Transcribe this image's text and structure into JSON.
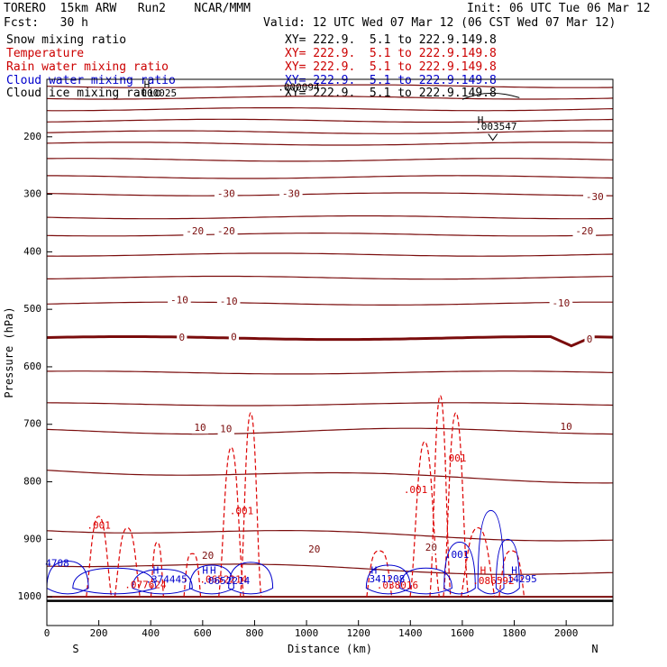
{
  "header": {
    "model": "TORERO  15km ARW   Run2    NCAR/MMM",
    "init": "Init: 06 UTC Tue 06 Mar 12",
    "fcst": "Fcst:   30 h",
    "valid": "Valid: 12 UTC Wed 07 Mar 12 (06 CST Wed 07 Mar 12)"
  },
  "legend": [
    {
      "label": "Snow mixing ratio",
      "color": "#000000",
      "xy": "XY= 222.9.  5.1 to 222.9.149.8"
    },
    {
      "label": "Temperature",
      "color": "#cc0000",
      "xy": "XY= 222.9.  5.1 to 222.9.149.8"
    },
    {
      "label": "Rain water mixing ratio",
      "color": "#cc0000",
      "xy": "XY= 222.9.  5.1 to 222.9.149.8"
    },
    {
      "label": "Cloud water mixing ratio",
      "color": "#0000cc",
      "xy": "XY= 222.9.  5.1 to 222.9.149.8"
    },
    {
      "label": "Cloud ice mixing ratio",
      "color": "#000000",
      "xy": "XY= 222.9.  5.1 to 222.9.149.8"
    }
  ],
  "colors": {
    "temperature": "#7a0c0c",
    "rain": "#dd0000",
    "cloud_water": "#0000cc",
    "ice": "#000000"
  },
  "chart_data": {
    "type": "line",
    "xlabel": "Distance (km)",
    "ylabel": "Pressure (hPa)",
    "xlim": [
      0,
      2180
    ],
    "ylim": [
      1050,
      100
    ],
    "xticks": [
      0,
      200,
      400,
      600,
      800,
      1000,
      1200,
      1400,
      1600,
      1800,
      2000
    ],
    "yticks": [
      200,
      300,
      400,
      500,
      600,
      700,
      800,
      900,
      1000
    ],
    "x_end_labels": {
      "left": "S",
      "right": "N"
    },
    "temperature_contours": {
      "levels_hpa": [
        112,
        132,
        152,
        172,
        192,
        212,
        240,
        270,
        300,
        340,
        370,
        405,
        445,
        490,
        550,
        610,
        665,
        712,
        788,
        890,
        950
      ],
      "zero_level_hpa": 550,
      "labels": [
        {
          "text": "-30",
          "x": 690,
          "p": 300
        },
        {
          "text": "-30",
          "x": 940,
          "p": 300
        },
        {
          "text": "-30",
          "x": 2110,
          "p": 305
        },
        {
          "text": "-20",
          "x": 570,
          "p": 365
        },
        {
          "text": "-20",
          "x": 690,
          "p": 365
        },
        {
          "text": "-20",
          "x": 2070,
          "p": 365
        },
        {
          "text": "-10",
          "x": 510,
          "p": 485
        },
        {
          "text": "-10",
          "x": 700,
          "p": 487
        },
        {
          "text": "-10",
          "x": 1980,
          "p": 490
        },
        {
          "text": "0",
          "x": 520,
          "p": 550
        },
        {
          "text": "0",
          "x": 720,
          "p": 549
        },
        {
          "text": "0",
          "x": 2090,
          "p": 553
        },
        {
          "text": "10",
          "x": 590,
          "p": 707
        },
        {
          "text": "10",
          "x": 690,
          "p": 709
        },
        {
          "text": "10",
          "x": 2000,
          "p": 705
        },
        {
          "text": "20",
          "x": 620,
          "p": 929
        },
        {
          "text": "20",
          "x": 1030,
          "p": 918
        },
        {
          "text": "20",
          "x": 1480,
          "p": 915
        }
      ]
    },
    "rain_labels": [
      {
        "text": ".001",
        "x": 200,
        "p": 877
      },
      {
        "text": ".001",
        "x": 750,
        "p": 852
      },
      {
        "text": ".001",
        "x": 1420,
        "p": 815
      },
      {
        "text": ".001",
        "x": 1570,
        "p": 760
      },
      {
        "text": ".077624",
        "x": 380,
        "p": 980
      },
      {
        "text": ".0652214",
        "x": 680,
        "p": 971
      },
      {
        "text": ".038016",
        "x": 1350,
        "p": 981
      },
      {
        "text": ".086592",
        "x": 1720,
        "p": 973
      }
    ],
    "cloud_water_labels": [
      {
        "text": "4708",
        "x": 40,
        "p": 943
      },
      {
        "text": ".374445",
        "x": 460,
        "p": 971
      },
      {
        "text": ".0652214",
        "x": 690,
        "p": 973
      },
      {
        "text": "341208",
        "x": 1310,
        "p": 970
      },
      {
        "text": ".001",
        "x": 1580,
        "p": 928
      },
      {
        "text": "14295",
        "x": 1830,
        "p": 970
      }
    ],
    "ice_labels": [
      {
        "text": ".000025",
        "x": 420,
        "p": 125
      },
      {
        "text": ".000094",
        "x": 970,
        "p": 115
      },
      {
        "text": ".003547",
        "x": 1730,
        "p": 183
      }
    ],
    "highs": [
      {
        "x": 385,
        "p": 110,
        "color": "ice"
      },
      {
        "x": 1670,
        "p": 172,
        "color": "ice"
      },
      {
        "x": 420,
        "p": 955,
        "color": "cloud"
      },
      {
        "x": 610,
        "p": 955,
        "color": "cloud"
      },
      {
        "x": 640,
        "p": 955,
        "color": "cloud"
      },
      {
        "x": 1260,
        "p": 955,
        "color": "cloud"
      },
      {
        "x": 1680,
        "p": 955,
        "color": "rain"
      },
      {
        "x": 1800,
        "p": 955,
        "color": "cloud"
      }
    ]
  }
}
